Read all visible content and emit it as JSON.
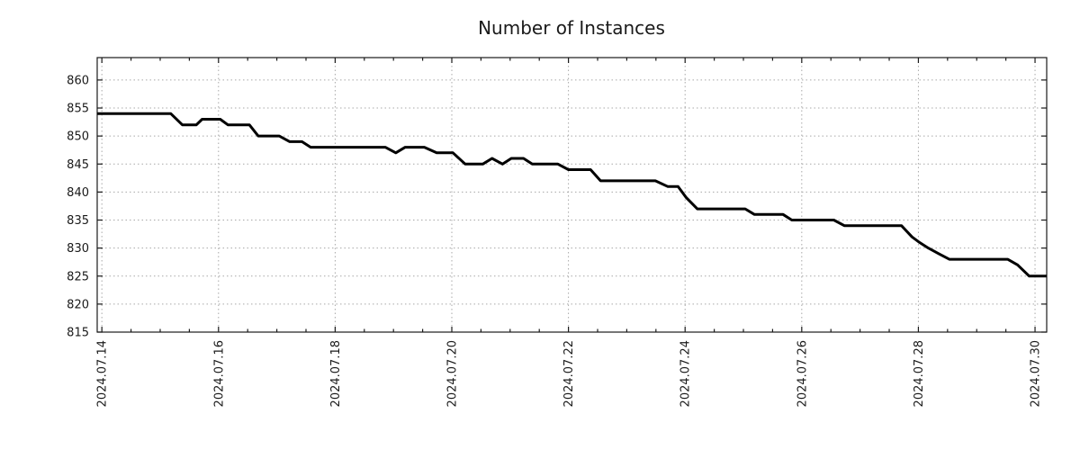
{
  "chart_data": {
    "type": "line",
    "title": "Number of Instances",
    "xlabel": "",
    "ylabel": "",
    "x_unit": "days since 2024-07-14",
    "xlim": [
      -0.08,
      16.2
    ],
    "ylim": [
      815,
      864
    ],
    "grid": true,
    "legend": "none",
    "x_tick_days": [
      0,
      2,
      4,
      6,
      8,
      10,
      12,
      14,
      16
    ],
    "x_tick_labels": [
      "2024.07.14",
      "2024.07.16",
      "2024.07.18",
      "2024.07.20",
      "2024.07.22",
      "2024.07.24",
      "2024.07.26",
      "2024.07.28",
      "2024.07.30"
    ],
    "x_minor_interval_days": 0.5,
    "y_ticks": [
      815,
      820,
      825,
      830,
      835,
      840,
      845,
      850,
      855,
      860
    ],
    "series": [
      {
        "name": "instances",
        "points": [
          [
            -0.08,
            854
          ],
          [
            1.18,
            854
          ],
          [
            1.38,
            852
          ],
          [
            1.62,
            852
          ],
          [
            1.72,
            853
          ],
          [
            2.03,
            853
          ],
          [
            2.16,
            852
          ],
          [
            2.53,
            852
          ],
          [
            2.68,
            850
          ],
          [
            3.04,
            850
          ],
          [
            3.22,
            849
          ],
          [
            3.43,
            849
          ],
          [
            3.58,
            848
          ],
          [
            4.86,
            848
          ],
          [
            5.04,
            847
          ],
          [
            5.2,
            848
          ],
          [
            5.53,
            848
          ],
          [
            5.74,
            847
          ],
          [
            6.02,
            847
          ],
          [
            6.23,
            845
          ],
          [
            6.53,
            845
          ],
          [
            6.69,
            846
          ],
          [
            6.87,
            845
          ],
          [
            7.02,
            846
          ],
          [
            7.23,
            846
          ],
          [
            7.38,
            845
          ],
          [
            7.82,
            845
          ],
          [
            8.0,
            844
          ],
          [
            8.38,
            844
          ],
          [
            8.55,
            842
          ],
          [
            9.49,
            842
          ],
          [
            9.7,
            841
          ],
          [
            9.88,
            841
          ],
          [
            10.02,
            839
          ],
          [
            10.21,
            837
          ],
          [
            11.03,
            837
          ],
          [
            11.19,
            836
          ],
          [
            11.68,
            836
          ],
          [
            11.83,
            835
          ],
          [
            12.55,
            835
          ],
          [
            12.73,
            834
          ],
          [
            13.71,
            834
          ],
          [
            13.89,
            832
          ],
          [
            14.02,
            831
          ],
          [
            14.17,
            830
          ],
          [
            14.35,
            829
          ],
          [
            14.53,
            828
          ],
          [
            15.53,
            828
          ],
          [
            15.7,
            827
          ],
          [
            15.9,
            825
          ],
          [
            16.2,
            825
          ]
        ]
      }
    ],
    "colors": {
      "line": "#000000",
      "grid": "#a8a8a8",
      "axis": "#1a1a1a",
      "text": "#1a1a1a",
      "background": "#ffffff"
    }
  }
}
